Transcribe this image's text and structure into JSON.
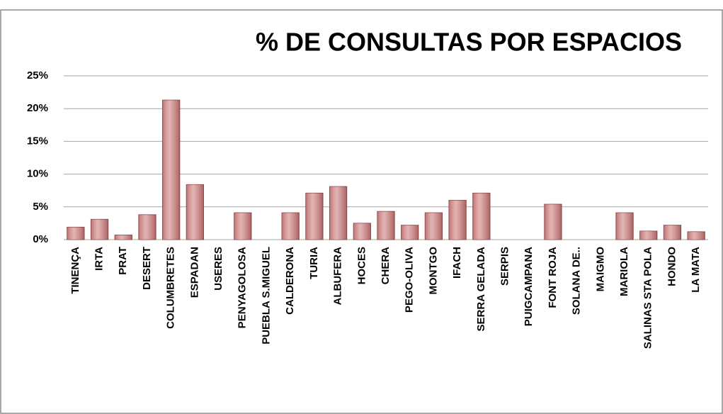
{
  "chart_data": {
    "type": "bar",
    "title": "% DE CONSULTAS POR ESPACIOS",
    "categories": [
      "TINENÇA",
      "IRTA",
      "PRAT",
      "DESERT",
      "COLUMBRETES",
      "ESPADAN",
      "USERES",
      "PENYAGOLOSA",
      "PUEBLA S.MIGUEL",
      "CALDERONA",
      "TURIA",
      "ALBUFERA",
      "HOCES",
      "CHERA",
      "PEGO-OLIVA",
      "MONTGO",
      "IFACH",
      "SERRA GELADA",
      "SERPIS",
      "PUIGCAMPANA",
      "FONT ROJA",
      "SOLANA DE..",
      "MAIGMO",
      "MARIOLA",
      "SALINAS STA POLA",
      "HONDO",
      "LA MATA"
    ],
    "values": [
      1.9,
      3.1,
      0.7,
      3.8,
      21.3,
      8.4,
      0,
      4.1,
      0,
      4.1,
      7.1,
      8.1,
      2.5,
      4.3,
      2.2,
      4.1,
      6.0,
      7.1,
      0,
      0,
      5.4,
      0,
      0,
      4.1,
      1.3,
      2.2,
      1.2
    ],
    "color": "#d48a8a",
    "ylim": [
      0,
      25
    ],
    "yticks": [
      {
        "value": 0,
        "label": "0%"
      },
      {
        "value": 5,
        "label": "5%"
      },
      {
        "value": 10,
        "label": "10%"
      },
      {
        "value": 15,
        "label": "15%"
      },
      {
        "value": 20,
        "label": "20%"
      },
      {
        "value": 25,
        "label": "25%"
      }
    ],
    "grid": true
  }
}
